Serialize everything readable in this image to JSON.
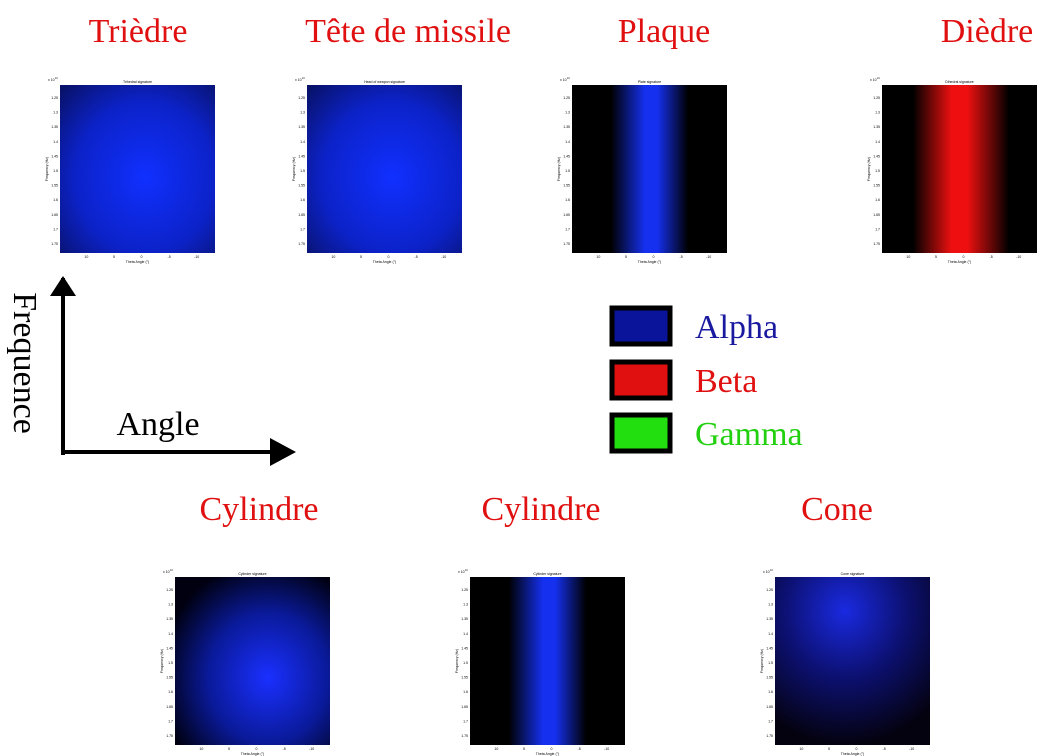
{
  "panels": [
    {
      "heading": "Trièdre",
      "plot_title": "Trihedral signature"
    },
    {
      "heading": "Tête de missile",
      "plot_title": "Head of weapon signature"
    },
    {
      "heading": "Plaque",
      "plot_title": "Plate signature"
    },
    {
      "heading": "Dièdre",
      "plot_title": "Dihedral signature"
    },
    {
      "heading": "Cylindre",
      "plot_title": "Cylinder signature"
    },
    {
      "heading": "Cylindre",
      "plot_title": "Cylinder signature"
    },
    {
      "heading": "Cone",
      "plot_title": "Cone signature"
    }
  ],
  "plot_axes": {
    "y_label": "Frequency (Hz)",
    "x_label": "Theta Angle (°)",
    "y_exponent": "x 10",
    "y_exponent_power": "10",
    "yticks": [
      "1.25",
      "1.3",
      "1.35",
      "1.4",
      "1.45",
      "1.5",
      "1.55",
      "1.6",
      "1.65",
      "1.7",
      "1.75"
    ],
    "xticks": [
      "10",
      "5",
      "0",
      "-5",
      "-10"
    ]
  },
  "axes": {
    "x_label": "Angle",
    "y_label": "Frequence"
  },
  "legend": [
    {
      "label": "Alpha"
    },
    {
      "label": "Beta"
    },
    {
      "label": "Gamma"
    }
  ]
}
